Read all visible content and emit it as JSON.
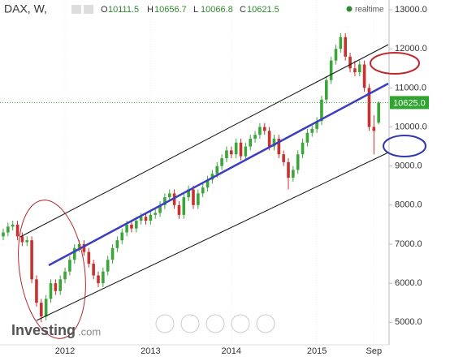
{
  "header": {
    "title": "DAX, W,",
    "o": "O",
    "h": "H",
    "l": "L",
    "c": "C",
    "realtime": "realtime"
  },
  "logo": {
    "main": "Investing",
    "suffix": ".com"
  },
  "chart_data": {
    "type": "candlestick",
    "categories": [
      null,
      null,
      null,
      null,
      null,
      null,
      null,
      null,
      null,
      null,
      null,
      null,
      null,
      "2012",
      null,
      null,
      null,
      null,
      null,
      null,
      null,
      null,
      null,
      null,
      null,
      null,
      null,
      null,
      null,
      null,
      null,
      "2013",
      null,
      null,
      null,
      null,
      null,
      null,
      null,
      null,
      null,
      null,
      null,
      null,
      null,
      null,
      null,
      null,
      "2014",
      null,
      null,
      null,
      null,
      null,
      null,
      null,
      null,
      null,
      null,
      null,
      null,
      null,
      null,
      null,
      null,
      null,
      "2015",
      null,
      null,
      null,
      null,
      null,
      null,
      null,
      null,
      null,
      null,
      null,
      "Sep",
      null
    ],
    "ohlc": [
      [
        7200,
        7400,
        7100,
        7300
      ],
      [
        7300,
        7550,
        7200,
        7450
      ],
      [
        7450,
        7600,
        7350,
        7500
      ],
      [
        7500,
        7600,
        7100,
        7200
      ],
      [
        7200,
        7300,
        6950,
        7050
      ],
      [
        7050,
        7200,
        6950,
        7100
      ],
      [
        7100,
        7200,
        6000,
        6100
      ],
      [
        6100,
        6200,
        5400,
        5500
      ],
      [
        5500,
        5600,
        5000,
        5150
      ],
      [
        5150,
        5700,
        5050,
        5600
      ],
      [
        5600,
        6100,
        5500,
        6000
      ],
      [
        6000,
        6100,
        5700,
        5800
      ],
      [
        5800,
        6200,
        5700,
        6100
      ],
      [
        6100,
        6400,
        6000,
        6300
      ],
      [
        6300,
        6700,
        6200,
        6600
      ],
      [
        6600,
        7000,
        6500,
        6900
      ],
      [
        6900,
        7100,
        6800,
        7000
      ],
      [
        7000,
        7100,
        6700,
        6800
      ],
      [
        6800,
        6900,
        6400,
        6500
      ],
      [
        6500,
        6600,
        6100,
        6200
      ],
      [
        6200,
        6300,
        5900,
        6000
      ],
      [
        6000,
        6400,
        5900,
        6300
      ],
      [
        6300,
        6700,
        6200,
        6600
      ],
      [
        6600,
        7000,
        6500,
        6900
      ],
      [
        6900,
        7200,
        6800,
        7100
      ],
      [
        7100,
        7400,
        7000,
        7300
      ],
      [
        7300,
        7600,
        7200,
        7500
      ],
      [
        7500,
        7600,
        7300,
        7400
      ],
      [
        7400,
        7700,
        7300,
        7600
      ],
      [
        7600,
        7800,
        7500,
        7700
      ],
      [
        7700,
        7800,
        7500,
        7600
      ],
      [
        7600,
        7850,
        7500,
        7750
      ],
      [
        7750,
        7900,
        7650,
        7800
      ],
      [
        7800,
        8100,
        7700,
        8000
      ],
      [
        8000,
        8300,
        7900,
        8200
      ],
      [
        8200,
        8400,
        8100,
        8300
      ],
      [
        8300,
        8400,
        7900,
        8000
      ],
      [
        8000,
        8100,
        7650,
        7750
      ],
      [
        7750,
        8300,
        7650,
        8200
      ],
      [
        8200,
        8500,
        8100,
        8400
      ],
      [
        8400,
        8500,
        7900,
        8000
      ],
      [
        8000,
        8400,
        7900,
        8300
      ],
      [
        8300,
        8550,
        8200,
        8450
      ],
      [
        8450,
        8750,
        8350,
        8650
      ],
      [
        8650,
        8900,
        8550,
        8800
      ],
      [
        8800,
        9100,
        8700,
        9000
      ],
      [
        9000,
        9300,
        8900,
        9200
      ],
      [
        9200,
        9500,
        9100,
        9400
      ],
      [
        9400,
        9500,
        9200,
        9300
      ],
      [
        9300,
        9700,
        9200,
        9600
      ],
      [
        9600,
        9700,
        9150,
        9250
      ],
      [
        9250,
        9600,
        9150,
        9500
      ],
      [
        9500,
        9800,
        9400,
        9700
      ],
      [
        9700,
        9900,
        9600,
        9800
      ],
      [
        9800,
        10100,
        9700,
        10000
      ],
      [
        10000,
        10100,
        9800,
        9900
      ],
      [
        9900,
        10000,
        9400,
        9500
      ],
      [
        9500,
        9800,
        9400,
        9700
      ],
      [
        9700,
        9800,
        9200,
        9300
      ],
      [
        9300,
        9400,
        9000,
        9100
      ],
      [
        9100,
        9200,
        8400,
        8700
      ],
      [
        8700,
        9000,
        8600,
        8900
      ],
      [
        8900,
        9400,
        8800,
        9300
      ],
      [
        9300,
        9700,
        9200,
        9600
      ],
      [
        9600,
        9950,
        9500,
        9850
      ],
      [
        9850,
        10050,
        9750,
        9950
      ],
      [
        9950,
        10250,
        9850,
        10150
      ],
      [
        10150,
        10800,
        10050,
        10700
      ],
      [
        10700,
        11300,
        10600,
        11200
      ],
      [
        11200,
        11800,
        11100,
        11700
      ],
      [
        11700,
        12100,
        11600,
        12000
      ],
      [
        12000,
        12400,
        11900,
        12300
      ],
      [
        12300,
        12400,
        11700,
        11800
      ],
      [
        11800,
        11900,
        11400,
        11500
      ],
      [
        11500,
        11700,
        11300,
        11400
      ],
      [
        11400,
        11700,
        11300,
        11600
      ],
      [
        11600,
        11700,
        10900,
        11000
      ],
      [
        11000,
        11100,
        9900,
        10000
      ],
      [
        10000,
        10300,
        9300,
        9900
      ],
      [
        10111.5,
        10656.7,
        10066.8,
        10621.5
      ]
    ],
    "up_color": "#3aa63a",
    "down_color": "#c8312f",
    "ylim": [
      4300,
      13250
    ],
    "yticks": [
      {
        "value": 5000,
        "label": "5000.0"
      },
      {
        "value": 6000,
        "label": "6000.0"
      },
      {
        "value": 7000,
        "label": "7000.0"
      },
      {
        "value": 8000,
        "label": "8000.0"
      },
      {
        "value": 9000,
        "label": "9000.0"
      },
      {
        "value": 10000,
        "label": "10000.0"
      },
      {
        "value": 11000,
        "label": "11000.0"
      },
      {
        "value": 12000,
        "label": "12000.0"
      },
      {
        "value": 13000,
        "label": "13000.0"
      }
    ],
    "last_price": {
      "value": 10625,
      "label": "10625.0"
    }
  }
}
